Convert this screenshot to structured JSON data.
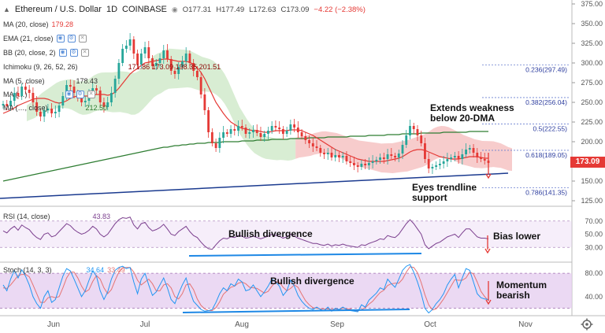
{
  "header": {
    "symbol": "Ethereum / U.S. Dollar",
    "interval": "1D",
    "exchange": "COINBASE",
    "open": "O177.31",
    "high": "H177.49",
    "low": "L172.63",
    "close": "C173.09",
    "change": "−4.22 (−2.38%)"
  },
  "indicators": [
    {
      "name": "MA (20, close)",
      "value": "179.28",
      "color": "#e53935"
    },
    {
      "name": "EMA (21, close)",
      "value": "",
      "color": "#333333"
    },
    {
      "name": "BB (20, close, 2)",
      "value": "",
      "color": "#333333"
    },
    {
      "name": "Ichimoku (9, 26, 52, 26)",
      "value": "171.86 173.09 198.35 201.51",
      "color": "#8b0000"
    },
    {
      "name": "MA (5, close)",
      "value": "178.43",
      "color": "#333333"
    },
    {
      "name": "MA (…)",
      "value": "",
      "color": "#333333"
    },
    {
      "name": "MA (…, close)",
      "value": "212.50",
      "color": "#2e7d32"
    }
  ],
  "annotations": {
    "weakness": "Extends weakness\nbelow 20-DMA",
    "trendline": "Eyes trendline\nsupport",
    "rsi_div": "Bullish divergence",
    "bias": "Bias lower",
    "stoch_div": "Bullish divergence",
    "momentum": "Momentum\nbearish"
  },
  "price_badge": "173.09",
  "rsi_header": {
    "name": "RSI (14, close)",
    "value": "43.83"
  },
  "stoch_header": {
    "name": "Stoch (14, 3, 3)",
    "value1": "34.64",
    "value2": "33.49"
  },
  "colors": {
    "candle_up": "#26a69a",
    "candle_down": "#e53935",
    "ma20": "#e53935",
    "ma200": "#2e7d32",
    "trendline": "#1a3a8f",
    "cloud_red": "#f4b6b6",
    "cloud_green": "#c8e6c0",
    "osc_bg": "#e6cff0",
    "rsi_line": "#7b3f8e",
    "stoch_k": "#2196f3",
    "stoch_d": "#e57373",
    "arrow": "#e53935",
    "div_line": "#1e88e5"
  },
  "chart_data": {
    "type": "line",
    "title": "Ethereum / U.S. Dollar 1D COINBASE",
    "price_axis": {
      "ticks": [
        375,
        350,
        325,
        300,
        275,
        250,
        225,
        200,
        175,
        150,
        125
      ],
      "ylim": [
        118,
        378
      ]
    },
    "x_axis": {
      "labels": [
        "Jun",
        "Jul",
        "Aug",
        "Sep",
        "Oct",
        "Nov"
      ]
    },
    "fib_levels": [
      {
        "label": "0.236(297.49)",
        "value": 297.49
      },
      {
        "label": "0.382(256.04)",
        "value": 256.04
      },
      {
        "label": "0.5(222.55)",
        "value": 222.55
      },
      {
        "label": "0.618(189.05)",
        "value": 189.05
      },
      {
        "label": "0.786(141.35)",
        "value": 141.35
      }
    ],
    "price_close_series": [
      248,
      245,
      252,
      262,
      258,
      270,
      266,
      262,
      250,
      238,
      232,
      240,
      242,
      236,
      238,
      246,
      258,
      272,
      270,
      262,
      255,
      250,
      252,
      260,
      268,
      265,
      250,
      244,
      250,
      262,
      280,
      300,
      318,
      322,
      330,
      312,
      298,
      312,
      320,
      306,
      296,
      300,
      306,
      316,
      305,
      290,
      286,
      295,
      302,
      312,
      300,
      290,
      282,
      260,
      240,
      212,
      198,
      192,
      205,
      212,
      210,
      216,
      214,
      220,
      218,
      210,
      212,
      215,
      211,
      206,
      210,
      214,
      220,
      218,
      216,
      210,
      214,
      222,
      218,
      212,
      207,
      202,
      198,
      194,
      192,
      186,
      184,
      186,
      180,
      183,
      180,
      182,
      175,
      173,
      170,
      168,
      172,
      170,
      173,
      175,
      177,
      180,
      178,
      184,
      182,
      180,
      185,
      196,
      208,
      220,
      216,
      208,
      198,
      178,
      166,
      168,
      170,
      172,
      175,
      178,
      180,
      182,
      178,
      184,
      190,
      192,
      186,
      180,
      178,
      176,
      173
    ],
    "ma20_series": [
      236,
      238,
      240,
      243,
      246,
      248,
      250,
      252,
      254,
      255,
      255,
      255,
      254,
      252,
      250,
      249,
      250,
      252,
      255,
      257,
      258,
      258,
      258,
      258,
      259,
      260,
      260,
      260,
      259,
      260,
      263,
      268,
      274,
      280,
      286,
      290,
      293,
      297,
      300,
      301,
      302,
      303,
      304,
      305,
      305,
      304,
      303,
      302,
      302,
      302,
      301,
      298,
      294,
      288,
      280,
      270,
      260,
      250,
      243,
      236,
      230,
      225,
      222,
      219,
      217,
      216,
      215,
      214,
      214,
      213,
      212,
      212,
      213,
      214,
      214,
      214,
      214,
      215,
      215,
      215,
      214,
      212,
      210,
      208,
      205,
      202,
      199,
      196,
      193,
      190,
      188,
      186,
      184,
      182,
      180,
      178,
      177,
      176,
      175,
      175,
      175,
      175,
      175,
      176,
      177,
      178,
      179,
      181,
      184,
      187,
      189,
      190,
      190,
      189,
      187,
      185,
      183,
      181,
      180,
      179,
      178,
      178,
      178,
      179,
      180,
      181,
      181,
      181,
      180,
      179,
      179
    ],
    "ma200_series": [
      150,
      151,
      152,
      153,
      154,
      155,
      156,
      157,
      158,
      159,
      160,
      161,
      162,
      163,
      164,
      165,
      166,
      167,
      168,
      169,
      170,
      171,
      172,
      173,
      174,
      175,
      176,
      177,
      178,
      179,
      180,
      181,
      182,
      183,
      184,
      185,
      186,
      187,
      188,
      189,
      190,
      191,
      192,
      193,
      193,
      194,
      195,
      195,
      196,
      196,
      197,
      197,
      198,
      198,
      198,
      199,
      199,
      199,
      199,
      200,
      200,
      200,
      200,
      200,
      201,
      201,
      201,
      201,
      202,
      202,
      202,
      202,
      203,
      203,
      203,
      203,
      203,
      204,
      204,
      204,
      204,
      204,
      205,
      205,
      205,
      205,
      205,
      206,
      206,
      206,
      206,
      206,
      206,
      207,
      207,
      207,
      207,
      207,
      208,
      208,
      208,
      208,
      208,
      209,
      209,
      209,
      209,
      210,
      210,
      210,
      210,
      210,
      211,
      211,
      211,
      211,
      211,
      211,
      212,
      212,
      212,
      212,
      212,
      212,
      212,
      213,
      213,
      213,
      213,
      213,
      213
    ],
    "rsi": {
      "ticks": [
        70,
        50,
        30
      ],
      "ylim": [
        10,
        90
      ],
      "last": 43.83,
      "series": [
        55,
        52,
        58,
        62,
        56,
        64,
        60,
        57,
        50,
        45,
        42,
        50,
        52,
        46,
        48,
        54,
        60,
        66,
        63,
        57,
        53,
        50,
        52,
        56,
        62,
        58,
        50,
        46,
        50,
        58,
        66,
        72,
        75,
        74,
        76,
        64,
        58,
        66,
        68,
        60,
        55,
        57,
        60,
        65,
        58,
        50,
        48,
        54,
        58,
        62,
        54,
        48,
        45,
        38,
        32,
        28,
        27,
        34,
        40,
        44,
        43,
        46,
        45,
        48,
        47,
        44,
        45,
        47,
        45,
        43,
        45,
        47,
        50,
        48,
        47,
        44,
        46,
        50,
        47,
        44,
        42,
        40,
        38,
        36,
        36,
        34,
        33,
        35,
        32,
        34,
        33,
        35,
        33,
        32,
        31,
        30,
        34,
        33,
        36,
        38,
        40,
        43,
        42,
        48,
        46,
        45,
        50,
        58,
        66,
        72,
        66,
        58,
        50,
        34,
        28,
        32,
        36,
        38,
        42,
        46,
        48,
        50,
        45,
        52,
        58,
        58,
        52,
        46,
        44,
        44,
        43
      ]
    },
    "stoch": {
      "ticks": [
        80,
        40
      ],
      "ylim": [
        10,
        95
      ],
      "last_k": 34.64,
      "last_d": 33.49,
      "k_series": [
        60,
        50,
        70,
        85,
        72,
        86,
        75,
        60,
        40,
        28,
        20,
        40,
        50,
        30,
        35,
        55,
        75,
        88,
        84,
        70,
        55,
        40,
        50,
        68,
        84,
        75,
        50,
        35,
        48,
        70,
        85,
        90,
        92,
        88,
        90,
        65,
        45,
        70,
        80,
        60,
        42,
        48,
        60,
        72,
        55,
        35,
        28,
        45,
        60,
        72,
        50,
        32,
        25,
        18,
        15,
        16,
        18,
        30,
        45,
        55,
        50,
        62,
        58,
        70,
        65,
        50,
        52,
        60,
        50,
        40,
        48,
        58,
        70,
        65,
        58,
        42,
        50,
        68,
        58,
        42,
        32,
        25,
        20,
        18,
        22,
        18,
        16,
        22,
        15,
        20,
        18,
        22,
        18,
        16,
        15,
        14,
        26,
        22,
        34,
        40,
        46,
        55,
        52,
        70,
        62,
        56,
        70,
        85,
        92,
        95,
        82,
        65,
        45,
        20,
        12,
        18,
        28,
        35,
        45,
        60,
        70,
        78,
        55,
        72,
        88,
        85,
        65,
        45,
        38,
        36,
        35
      ],
      "d_series": [
        55,
        54,
        60,
        68,
        76,
        78,
        78,
        74,
        60,
        45,
        30,
        30,
        38,
        40,
        38,
        40,
        55,
        72,
        82,
        82,
        72,
        58,
        48,
        52,
        66,
        76,
        70,
        55,
        45,
        52,
        68,
        82,
        89,
        90,
        90,
        82,
        68,
        60,
        65,
        70,
        62,
        50,
        50,
        60,
        62,
        55,
        40,
        36,
        45,
        60,
        62,
        52,
        36,
        25,
        19,
        16,
        16,
        21,
        31,
        44,
        50,
        56,
        58,
        63,
        65,
        62,
        56,
        55,
        54,
        50,
        46,
        49,
        58,
        65,
        65,
        56,
        50,
        54,
        60,
        56,
        44,
        33,
        26,
        21,
        20,
        19,
        19,
        19,
        18,
        19,
        18,
        20,
        19,
        19,
        16,
        15,
        18,
        21,
        27,
        32,
        40,
        47,
        51,
        59,
        62,
        63,
        63,
        70,
        82,
        91,
        90,
        81,
        64,
        43,
        26,
        17,
        19,
        27,
        36,
        47,
        58,
        69,
        68,
        68,
        72,
        82,
        79,
        65,
        49,
        40,
        33
      ]
    }
  }
}
